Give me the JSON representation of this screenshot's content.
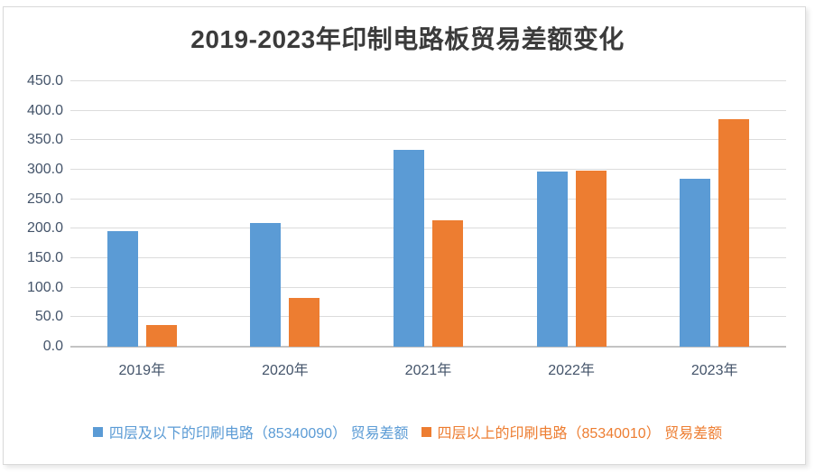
{
  "title": "2019-2023年印制电路板贸易差额变化",
  "chart_data": {
    "type": "bar",
    "title": "2019-2023年印制电路板贸易差额变化",
    "categories": [
      "2019年",
      "2020年",
      "2021年",
      "2022年",
      "2023年"
    ],
    "series": [
      {
        "name": "四层及以下的印刷电路（85340090） 贸易差额",
        "color": "#5B9BD5",
        "values": [
          196,
          210,
          334,
          297,
          285
        ]
      },
      {
        "name": "四层以上的印刷电路（85340010） 贸易差额",
        "color": "#ED7D31",
        "values": [
          36,
          82,
          214,
          299,
          385
        ]
      }
    ],
    "xlabel": "",
    "ylabel": "",
    "ylim": [
      0,
      450
    ],
    "ytick_step": 50,
    "ytick_labels": [
      "0.0",
      "50.0",
      "100.0",
      "150.0",
      "200.0",
      "250.0",
      "300.0",
      "350.0",
      "400.0",
      "450.0"
    ],
    "grid": true,
    "legend_position": "bottom"
  },
  "style": {
    "grid_color": "#dcdcdc",
    "axis_line_color": "#c3c3c3",
    "tick_label_color": "#44546a",
    "title_color": "#3b3b3b",
    "frame_border_color": "#d9d9d9"
  }
}
